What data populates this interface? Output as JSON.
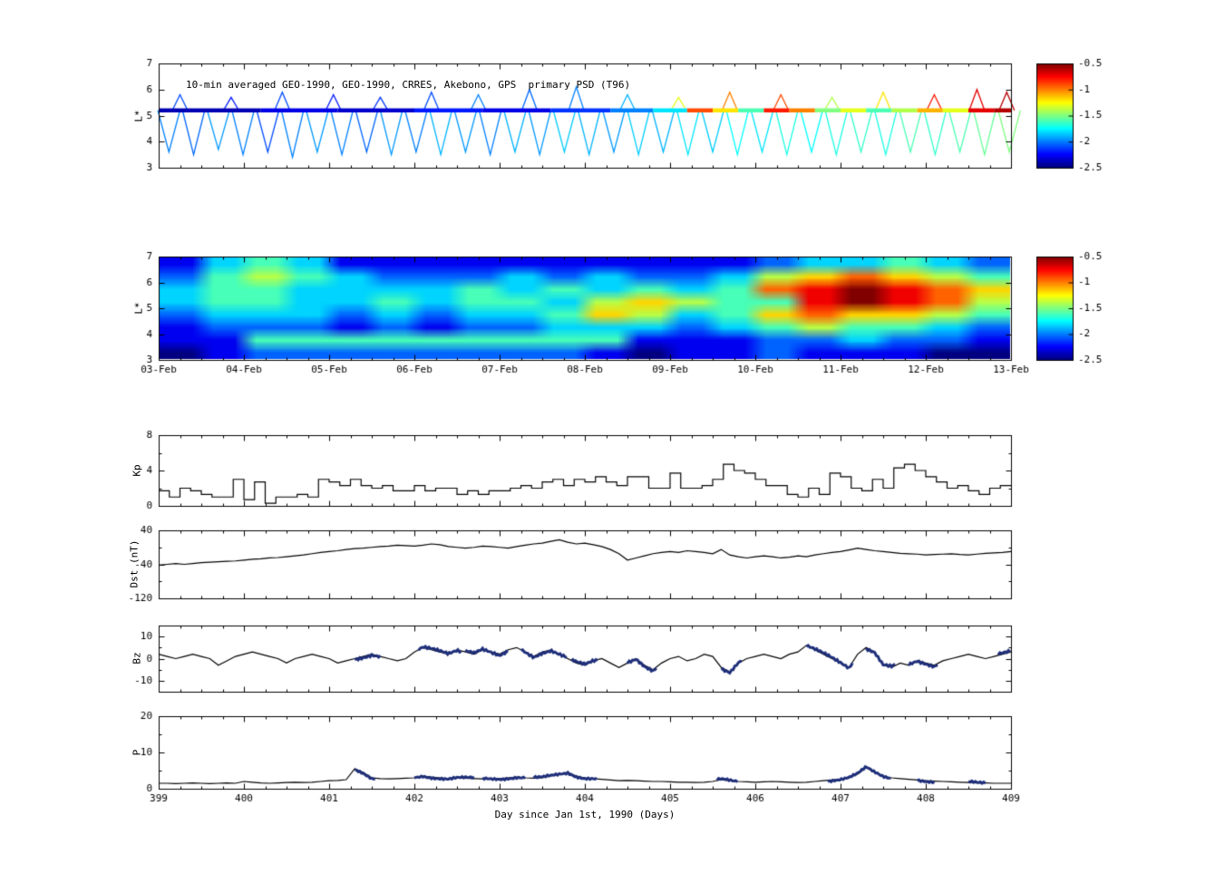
{
  "figure": {
    "background": "#ffffff",
    "xlabel": "Day since Jan 1st, 1990 (Days)",
    "x_day_ticks": [
      "399",
      "400",
      "401",
      "402",
      "403",
      "404",
      "405",
      "406",
      "407",
      "408",
      "409"
    ],
    "x_date_ticks": [
      "03-Feb",
      "04-Feb",
      "05-Feb",
      "06-Feb",
      "07-Feb",
      "08-Feb",
      "09-Feb",
      "10-Feb",
      "11-Feb",
      "12-Feb",
      "13-Feb"
    ],
    "colorbar": {
      "ticks": [
        "-0.5",
        "-1",
        "-1.5",
        "-2",
        "-2.5"
      ],
      "vmin": -2.5,
      "vmax": -0.5
    }
  },
  "chart_data": [
    {
      "type": "scatter",
      "title": "10-min averaged GEO-1990, GEO-1990, CRRES, Akebono, GPS  primary PSD (T96)",
      "ylabel": "L*",
      "xlim": [
        399,
        409
      ],
      "ylim": [
        3,
        7
      ],
      "yticks": [
        7,
        6,
        5,
        4,
        3
      ],
      "band_level": 5.2,
      "band_segments": [
        [
          399.0,
          400.2,
          -2.4
        ],
        [
          400.2,
          401.1,
          -2.3
        ],
        [
          401.1,
          402.0,
          -2.35
        ],
        [
          402.0,
          402.8,
          -2.2
        ],
        [
          402.8,
          403.6,
          -2.3
        ],
        [
          403.6,
          404.3,
          -2.15
        ],
        [
          404.3,
          404.8,
          -2.0
        ],
        [
          404.8,
          405.2,
          -1.8
        ],
        [
          405.2,
          405.5,
          -0.9
        ],
        [
          405.5,
          405.8,
          -1.2
        ],
        [
          405.8,
          406.1,
          -1.6
        ],
        [
          406.1,
          406.4,
          -0.8
        ],
        [
          406.4,
          406.7,
          -1.0
        ],
        [
          406.7,
          407.0,
          -1.5
        ],
        [
          407.0,
          407.3,
          -1.3
        ],
        [
          407.3,
          407.6,
          -1.6
        ],
        [
          407.6,
          407.9,
          -1.4
        ],
        [
          407.9,
          408.2,
          -1.1
        ],
        [
          408.2,
          408.5,
          -1.3
        ],
        [
          408.5,
          408.8,
          -0.7
        ],
        [
          408.8,
          409.0,
          -0.6
        ]
      ],
      "dips": [
        [
          399.12,
          3.6,
          -2.0
        ],
        [
          399.41,
          3.5,
          -2.05
        ],
        [
          399.7,
          3.7,
          -1.95
        ],
        [
          399.99,
          3.5,
          -2.0
        ],
        [
          400.28,
          3.6,
          -2.1
        ],
        [
          400.57,
          3.4,
          -2.0
        ],
        [
          400.86,
          3.6,
          -1.95
        ],
        [
          401.15,
          3.5,
          -2.0
        ],
        [
          401.44,
          3.6,
          -2.05
        ],
        [
          401.73,
          3.5,
          -1.95
        ],
        [
          402.02,
          3.6,
          -2.0
        ],
        [
          402.31,
          3.5,
          -1.9
        ],
        [
          402.6,
          3.6,
          -1.95
        ],
        [
          402.89,
          3.5,
          -2.0
        ],
        [
          403.18,
          3.6,
          -1.9
        ],
        [
          403.47,
          3.5,
          -1.95
        ],
        [
          403.76,
          3.6,
          -1.85
        ],
        [
          404.05,
          3.5,
          -1.9
        ],
        [
          404.34,
          3.6,
          -1.95
        ],
        [
          404.63,
          3.5,
          -1.85
        ],
        [
          404.92,
          3.6,
          -1.9
        ],
        [
          405.21,
          3.5,
          -1.8
        ],
        [
          405.5,
          3.6,
          -1.85
        ],
        [
          405.79,
          3.5,
          -1.75
        ],
        [
          406.08,
          3.6,
          -1.8
        ],
        [
          406.37,
          3.5,
          -1.7
        ],
        [
          406.66,
          3.6,
          -1.75
        ],
        [
          406.95,
          3.5,
          -1.7
        ],
        [
          407.24,
          3.6,
          -1.65
        ],
        [
          407.53,
          3.5,
          -1.7
        ],
        [
          407.82,
          3.6,
          -1.6
        ],
        [
          408.11,
          3.5,
          -1.65
        ],
        [
          408.4,
          3.6,
          -1.6
        ],
        [
          408.69,
          3.5,
          -1.55
        ],
        [
          408.98,
          3.6,
          -1.5
        ]
      ],
      "peaks": [
        [
          399.25,
          5.8,
          -2.1
        ],
        [
          399.85,
          5.7,
          -2.2
        ],
        [
          400.45,
          5.9,
          -2.1
        ],
        [
          401.05,
          5.8,
          -2.2
        ],
        [
          401.6,
          5.7,
          -2.15
        ],
        [
          402.2,
          5.9,
          -2.1
        ],
        [
          402.75,
          5.8,
          -2.0
        ],
        [
          403.35,
          6.0,
          -2.05
        ],
        [
          403.9,
          6.1,
          -2.0
        ],
        [
          404.5,
          5.8,
          -1.9
        ],
        [
          405.1,
          5.7,
          -1.3
        ],
        [
          405.7,
          5.9,
          -1.0
        ],
        [
          406.3,
          5.8,
          -0.9
        ],
        [
          406.9,
          5.7,
          -1.4
        ],
        [
          407.5,
          5.9,
          -1.2
        ],
        [
          408.1,
          5.8,
          -0.8
        ],
        [
          408.6,
          6.0,
          -0.7
        ],
        [
          408.95,
          5.9,
          -0.6
        ]
      ]
    },
    {
      "type": "heatmap",
      "ylabel": "L*",
      "xlim": [
        399,
        409
      ],
      "ylim": [
        3,
        7
      ],
      "yticks": [
        7,
        6,
        5,
        4,
        3
      ],
      "vmin": -2.5,
      "vmax": -0.5,
      "rows_top_to_bottom": [
        "1133443311111111111111111111223333443322",
        "2244554433222222332233222233556677665544",
        "3344443333333344334433443344778899887766",
        "3344443333443344443355665544448899887755",
        "2233333322332233334466553344667766665544",
        "1122222211221122223333332233445544443322",
        "1111444444444444444444111111222233222211",
        "0011222222222222222211001111221111110000"
      ]
    },
    {
      "type": "line",
      "step": true,
      "ylabel": "Kp",
      "xlim": [
        399,
        409
      ],
      "ylim": [
        0,
        8
      ],
      "yticks": [
        8,
        4,
        0
      ],
      "yminor": [
        2,
        6
      ],
      "x0": 399,
      "dx": 0.125,
      "values": [
        1.7,
        1.0,
        2.0,
        1.7,
        1.3,
        1.0,
        1.0,
        3.0,
        0.7,
        2.7,
        0.3,
        1.0,
        1.0,
        1.3,
        1.0,
        3.0,
        2.7,
        2.3,
        3.0,
        2.3,
        2.0,
        2.3,
        1.7,
        1.7,
        2.3,
        1.7,
        2.0,
        2.0,
        1.3,
        1.7,
        1.3,
        1.7,
        1.7,
        2.0,
        2.3,
        2.0,
        2.7,
        3.0,
        2.3,
        3.0,
        2.7,
        3.3,
        2.7,
        2.3,
        3.3,
        3.3,
        2.0,
        2.0,
        3.7,
        2.0,
        2.0,
        2.3,
        3.0,
        4.7,
        4.0,
        3.7,
        3.0,
        2.3,
        2.3,
        1.3,
        1.0,
        2.0,
        1.3,
        3.7,
        3.3,
        2.0,
        1.7,
        3.0,
        2.0,
        4.3,
        4.7,
        4.0,
        3.3,
        2.7,
        2.0,
        2.3,
        1.7,
        1.3,
        2.0,
        2.3
      ]
    },
    {
      "type": "line",
      "ylabel": "Dst (nT)",
      "xlim": [
        399,
        409
      ],
      "ylim": [
        -120,
        40
      ],
      "yticks": [
        40,
        -40,
        -120
      ],
      "yminor": [
        0,
        -80
      ],
      "x0": 399,
      "dx": 0.1,
      "values": [
        -42,
        -40,
        -38,
        -40,
        -38,
        -36,
        -35,
        -34,
        -33,
        -32,
        -30,
        -28,
        -27,
        -25,
        -24,
        -22,
        -20,
        -18,
        -15,
        -12,
        -10,
        -8,
        -5,
        -3,
        -2,
        0,
        2,
        3,
        5,
        4,
        3,
        5,
        8,
        6,
        2,
        0,
        -2,
        0,
        3,
        2,
        0,
        -2,
        2,
        5,
        8,
        10,
        14,
        18,
        12,
        8,
        10,
        6,
        2,
        -5,
        -15,
        -30,
        -25,
        -20,
        -15,
        -12,
        -10,
        -12,
        -8,
        -10,
        -12,
        -15,
        -5,
        -18,
        -22,
        -25,
        -22,
        -20,
        -22,
        -25,
        -23,
        -20,
        -22,
        -18,
        -15,
        -12,
        -10,
        -6,
        -2,
        -5,
        -8,
        -10,
        -12,
        -14,
        -15,
        -16,
        -18,
        -17,
        -16,
        -15,
        -17,
        -18,
        -16,
        -14,
        -13,
        -12,
        -10
      ]
    },
    {
      "type": "line",
      "ylabel": "Bz",
      "xlim": [
        399,
        409
      ],
      "ylim": [
        -15,
        15
      ],
      "yticks": [
        10,
        0,
        -10
      ],
      "yminor": [
        5,
        -5
      ],
      "x0": 399,
      "dx": 0.1,
      "noise_amp": 1.1,
      "thick_color": "#1f2f7a",
      "thick_ranges": [
        [
          401.3,
          401.6
        ],
        [
          402.05,
          402.55
        ],
        [
          402.6,
          403.1
        ],
        [
          403.25,
          403.8
        ],
        [
          403.85,
          404.15
        ],
        [
          404.5,
          404.85
        ],
        [
          405.6,
          405.85
        ],
        [
          406.6,
          407.15
        ],
        [
          407.3,
          407.65
        ],
        [
          407.8,
          408.15
        ],
        [
          408.85,
          409.0
        ]
      ],
      "values": [
        2,
        1,
        0,
        1,
        2,
        1,
        0,
        -3,
        -1,
        1,
        2,
        3,
        2,
        1,
        0,
        -2,
        0,
        1,
        2,
        1,
        0,
        -2,
        -1,
        0,
        1,
        2,
        1,
        0,
        -1,
        0,
        3,
        5,
        4,
        3,
        2,
        4,
        3,
        2,
        4,
        3,
        2,
        4,
        5,
        3,
        1,
        3,
        4,
        2,
        0,
        -2,
        -3,
        -1,
        0,
        -2,
        -4,
        -2,
        0,
        -3,
        -5,
        -2,
        0,
        1,
        -1,
        0,
        2,
        1,
        -4,
        -6,
        -2,
        0,
        1,
        2,
        1,
        0,
        2,
        3,
        6,
        4,
        2,
        0,
        -2,
        -4,
        2,
        5,
        3,
        -3,
        -4,
        -2,
        -3,
        -1,
        -2,
        -3,
        -1,
        0,
        1,
        2,
        1,
        0,
        1,
        2,
        3
      ]
    },
    {
      "type": "line",
      "ylabel": "P",
      "xlim": [
        399,
        409
      ],
      "ylim": [
        0,
        20
      ],
      "yticks": [
        20,
        10,
        0
      ],
      "yminor": [
        5,
        15
      ],
      "x0": 399,
      "dx": 0.1,
      "noise_amp": 0.5,
      "thick_color": "#1f2f7a",
      "thick_ranges": [
        [
          401.3,
          401.55
        ],
        [
          402.0,
          402.7
        ],
        [
          402.8,
          403.3
        ],
        [
          403.4,
          404.15
        ],
        [
          405.55,
          405.8
        ],
        [
          406.85,
          407.6
        ],
        [
          407.9,
          408.1
        ],
        [
          408.5,
          408.7
        ]
      ],
      "values": [
        1.5,
        1.5,
        1.4,
        1.5,
        1.6,
        1.5,
        1.4,
        1.5,
        1.6,
        1.5,
        2.0,
        1.8,
        1.6,
        1.5,
        1.6,
        1.7,
        1.8,
        1.7,
        1.8,
        2.0,
        2.2,
        2.3,
        2.5,
        5.5,
        4.5,
        3.0,
        2.8,
        2.7,
        2.8,
        2.9,
        3.0,
        3.5,
        3.2,
        3.0,
        2.8,
        3.0,
        2.9,
        2.8,
        2.7,
        2.8,
        2.8,
        3.0,
        3.2,
        3.0,
        2.9,
        3.0,
        3.5,
        4.0,
        4.5,
        3.5,
        3.0,
        2.8,
        2.6,
        2.4,
        2.2,
        2.3,
        2.2,
        2.1,
        2.0,
        2.0,
        1.9,
        1.8,
        1.8,
        1.7,
        1.8,
        2.0,
        2.5,
        2.2,
        2.0,
        1.9,
        1.8,
        1.9,
        2.0,
        1.9,
        1.8,
        1.7,
        1.8,
        2.0,
        2.2,
        2.4,
        2.6,
        3.0,
        4.0,
        5.8,
        4.5,
        3.5,
        3.0,
        2.8,
        2.6,
        2.4,
        2.2,
        2.1,
        2.0,
        1.9,
        1.8,
        1.7,
        1.6,
        1.6,
        1.5,
        1.5,
        1.5
      ]
    }
  ]
}
